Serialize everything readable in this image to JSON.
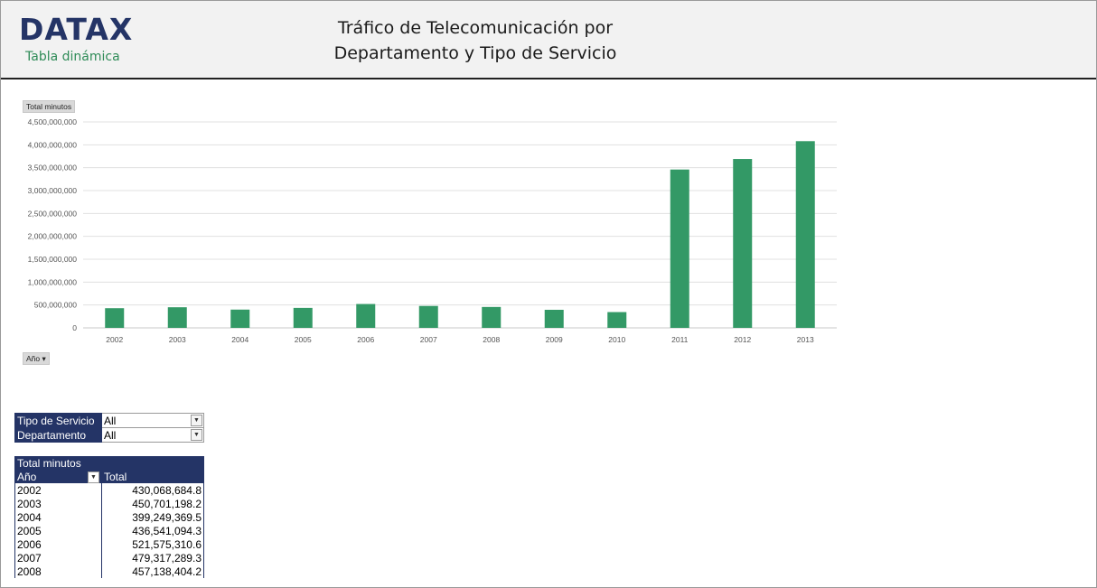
{
  "header": {
    "logo": "DATAX",
    "subtitle": "Tabla dinámica",
    "title_line1": "Tráfico de Telecomunicación por",
    "title_line2": "Departamento y Tipo de Servicio"
  },
  "field_buttons": {
    "value_field": "Total minutos",
    "axis_field": "Año"
  },
  "filters": [
    {
      "label": "Tipo de Servicio",
      "value": "All"
    },
    {
      "label": "Departamento",
      "value": "All"
    }
  ],
  "pivot": {
    "header_values": "Total minutos",
    "row_header": "Año",
    "col_header": "Total",
    "rows": [
      {
        "year": "2002",
        "total": "430,068,684.8"
      },
      {
        "year": "2003",
        "total": "450,701,198.2"
      },
      {
        "year": "2004",
        "total": "399,249,369.5"
      },
      {
        "year": "2005",
        "total": "436,541,094.3"
      },
      {
        "year": "2006",
        "total": "521,575,310.6"
      },
      {
        "year": "2007",
        "total": "479,317,289.3"
      },
      {
        "year": "2008",
        "total": "457,138,404.2"
      }
    ]
  },
  "colors": {
    "bar": "#339966",
    "navy": "#243466"
  },
  "chart_data": {
    "type": "bar",
    "categories": [
      "2002",
      "2003",
      "2004",
      "2005",
      "2006",
      "2007",
      "2008",
      "2009",
      "2010",
      "2011",
      "2012",
      "2013"
    ],
    "values": [
      430068684.8,
      450701198.2,
      399249369.5,
      436541094.3,
      521575310.6,
      479317289.3,
      457138404.2,
      395000000,
      345000000,
      3460000000,
      3690000000,
      4080000000
    ],
    "ylim": [
      0,
      4500000000
    ],
    "yticks": [
      "0",
      "500,000,000",
      "1,000,000,000",
      "1,500,000,000",
      "2,000,000,000",
      "2,500,000,000",
      "3,000,000,000",
      "3,500,000,000",
      "4,000,000,000",
      "4,500,000,000"
    ],
    "grid": true,
    "legend": "none"
  }
}
